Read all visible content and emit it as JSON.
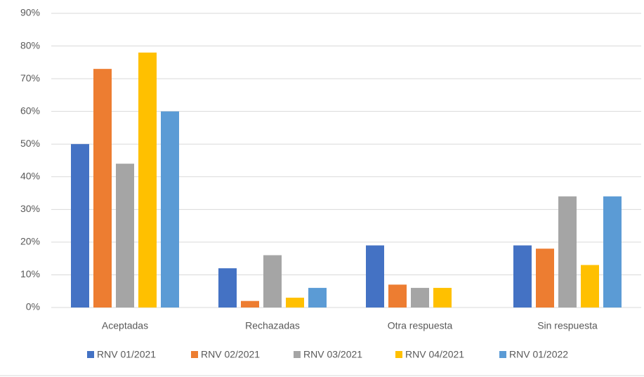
{
  "chart_data": {
    "type": "bar",
    "categories": [
      "Aceptadas",
      "Rechazadas",
      "Otra respuesta",
      "Sin respuesta"
    ],
    "series": [
      {
        "name": "RNV 01/2021",
        "color": "#4472c4",
        "values": [
          50,
          12,
          19,
          19
        ]
      },
      {
        "name": "RNV 02/2021",
        "color": "#ed7d31",
        "values": [
          73,
          2,
          7,
          18
        ]
      },
      {
        "name": "RNV 03/2021",
        "color": "#a5a5a5",
        "values": [
          44,
          16,
          6,
          34
        ]
      },
      {
        "name": "RNV 04/2021",
        "color": "#ffc000",
        "values": [
          78,
          3,
          6,
          13
        ]
      },
      {
        "name": "RNV 01/2022",
        "color": "#5b9bd5",
        "values": [
          60,
          6,
          0,
          34
        ]
      }
    ],
    "ylim": [
      0,
      90
    ],
    "yticks": [
      {
        "value": 0,
        "label": "0%"
      },
      {
        "value": 10,
        "label": "10%"
      },
      {
        "value": 20,
        "label": "20%"
      },
      {
        "value": 30,
        "label": "30%"
      },
      {
        "value": 40,
        "label": "40%"
      },
      {
        "value": 50,
        "label": "50%"
      },
      {
        "value": 60,
        "label": "60%"
      },
      {
        "value": 70,
        "label": "70%"
      },
      {
        "value": 80,
        "label": "80%"
      },
      {
        "value": 90,
        "label": "90%"
      }
    ],
    "grid": true,
    "legend": "bottom"
  }
}
